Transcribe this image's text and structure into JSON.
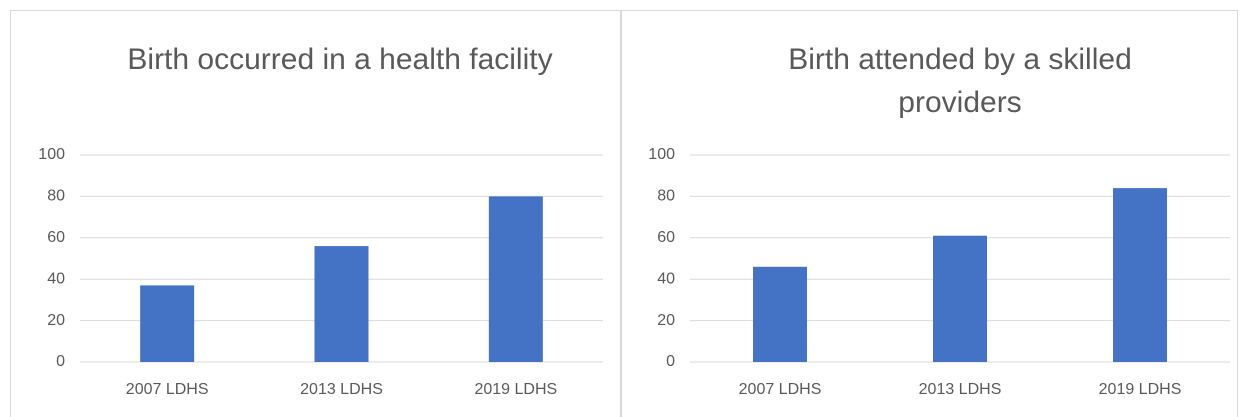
{
  "chart_data": [
    {
      "type": "bar",
      "title": "Birth occurred in a health facility",
      "categories": [
        "2007 LDHS",
        "2013 LDHS",
        "2019 LDHS"
      ],
      "values": [
        37,
        56,
        80
      ],
      "color": "#4472c4",
      "ylim": [
        0,
        100
      ],
      "yticks": [
        0,
        20,
        40,
        60,
        80,
        100
      ],
      "grid": true
    },
    {
      "type": "bar",
      "title": "Birth attended by a skilled providers",
      "categories": [
        "2007 LDHS",
        "2013 LDHS",
        "2019 LDHS"
      ],
      "values": [
        46,
        61,
        84
      ],
      "color": "#4472c4",
      "ylim": [
        0,
        100
      ],
      "yticks": [
        0,
        20,
        40,
        60,
        80,
        100
      ],
      "grid": true
    }
  ]
}
